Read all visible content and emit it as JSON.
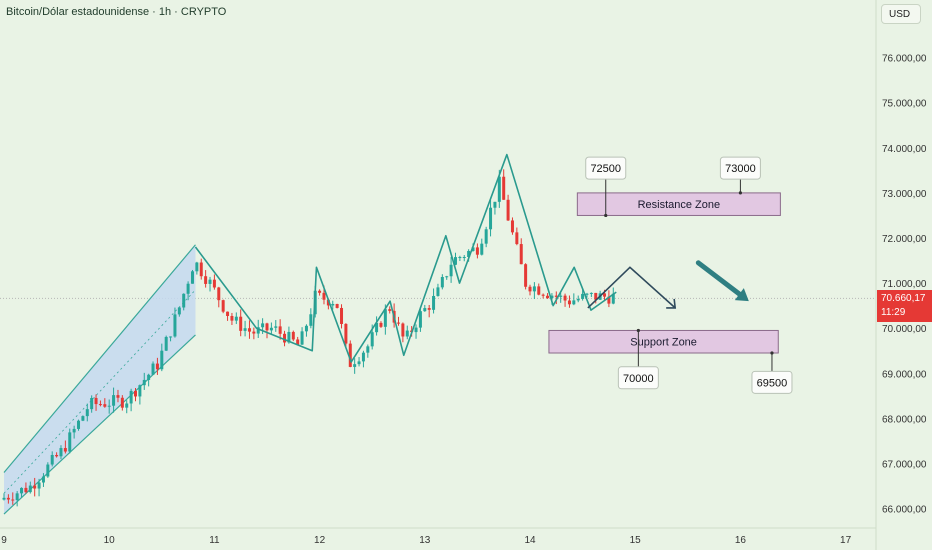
{
  "header": {
    "title": "Bitcoin/Dólar estadounidense · 1h · CRYPTO",
    "currency": "USD"
  },
  "last_price": {
    "value": "70.660,17",
    "countdown": "11:29"
  },
  "colors": {
    "background": "#e9f3e5",
    "up_candle": "#26a69a",
    "down_candle": "#e53935",
    "channel_fill": "#c4d8f0",
    "channel_line": "#3aa89a",
    "pattern_line": "#2a9a8e",
    "projection_line": "#2f4a5c",
    "arrow": "#2f7f82",
    "zone_fill": "#e2c8e2",
    "zone_border": "#8a6a8a",
    "price_tag": "#e53935"
  },
  "chart_data": {
    "type": "candlestick",
    "title": "Bitcoin/Dólar estadounidense · 1h · CRYPTO",
    "x_ticks": [
      "9",
      "10",
      "11",
      "12",
      "13",
      "14",
      "15",
      "16",
      "17"
    ],
    "y_ticks": [
      "76.000,00",
      "75.000,00",
      "74.000,00",
      "73.000,00",
      "72.000,00",
      "71.000,00",
      "70.000,00",
      "69.000,00",
      "68.000,00",
      "67.000,00",
      "66.000,00"
    ],
    "ylim": [
      65800,
      76700
    ],
    "xlim": [
      9.0,
      17.0
    ],
    "last_price": 70660.17,
    "path_points": [
      [
        9.0,
        66200
      ],
      [
        9.3,
        66500
      ],
      [
        9.6,
        67300
      ],
      [
        9.85,
        68300
      ],
      [
        10.2,
        68400
      ],
      [
        10.5,
        69200
      ],
      [
        10.7,
        70400
      ],
      [
        10.85,
        71500
      ],
      [
        11.0,
        71000
      ],
      [
        11.2,
        70200
      ],
      [
        11.4,
        69900
      ],
      [
        11.6,
        70000
      ],
      [
        11.85,
        69600
      ],
      [
        12.0,
        70700
      ],
      [
        12.2,
        70600
      ],
      [
        12.32,
        69200
      ],
      [
        12.5,
        69600
      ],
      [
        12.7,
        70500
      ],
      [
        12.85,
        69700
      ],
      [
        13.0,
        70300
      ],
      [
        13.15,
        70700
      ],
      [
        13.3,
        71500
      ],
      [
        13.55,
        71800
      ],
      [
        13.75,
        73200
      ],
      [
        13.85,
        72300
      ],
      [
        14.0,
        71000
      ],
      [
        14.2,
        70800
      ],
      [
        14.4,
        70600
      ],
      [
        14.6,
        70700
      ],
      [
        14.8,
        70700
      ]
    ],
    "channel": {
      "upper": [
        [
          9.0,
          66800
        ],
        [
          10.82,
          71850
        ]
      ],
      "lower": [
        [
          9.0,
          65880
        ],
        [
          10.82,
          69850
        ]
      ]
    },
    "pattern_line": [
      [
        10.82,
        71800
      ],
      [
        11.4,
        70000
      ],
      [
        11.93,
        69500
      ],
      [
        11.97,
        71350
      ],
      [
        12.3,
        69250
      ],
      [
        12.67,
        70600
      ],
      [
        12.8,
        69400
      ],
      [
        13.2,
        72050
      ],
      [
        13.33,
        71000
      ],
      [
        13.78,
        73850
      ],
      [
        14.22,
        70500
      ],
      [
        14.42,
        71350
      ],
      [
        14.58,
        70400
      ],
      [
        14.82,
        70800
      ]
    ],
    "projection": [
      [
        14.55,
        70450
      ],
      [
        14.95,
        71350
      ],
      [
        15.38,
        70450
      ]
    ],
    "trend_arrow": [
      [
        15.6,
        71450
      ],
      [
        16.08,
        70600
      ]
    ],
    "zones": [
      {
        "name": "Resistance Zone",
        "x0": 14.45,
        "x1": 16.38,
        "y_top": 73000,
        "y_bottom": 72500,
        "callouts": [
          {
            "label": "72500",
            "x": 14.72,
            "y": 72500,
            "label_y": 73550
          },
          {
            "label": "73000",
            "x": 16.0,
            "y": 73000,
            "label_y": 73550
          }
        ]
      },
      {
        "name": "Support Zone",
        "x0": 14.18,
        "x1": 16.36,
        "y_top": 69950,
        "y_bottom": 69450,
        "callouts": [
          {
            "label": "70000",
            "x": 15.03,
            "y": 69950,
            "label_y": 68900
          },
          {
            "label": "69500",
            "x": 16.3,
            "y": 69450,
            "label_y": 68800
          }
        ]
      }
    ]
  }
}
